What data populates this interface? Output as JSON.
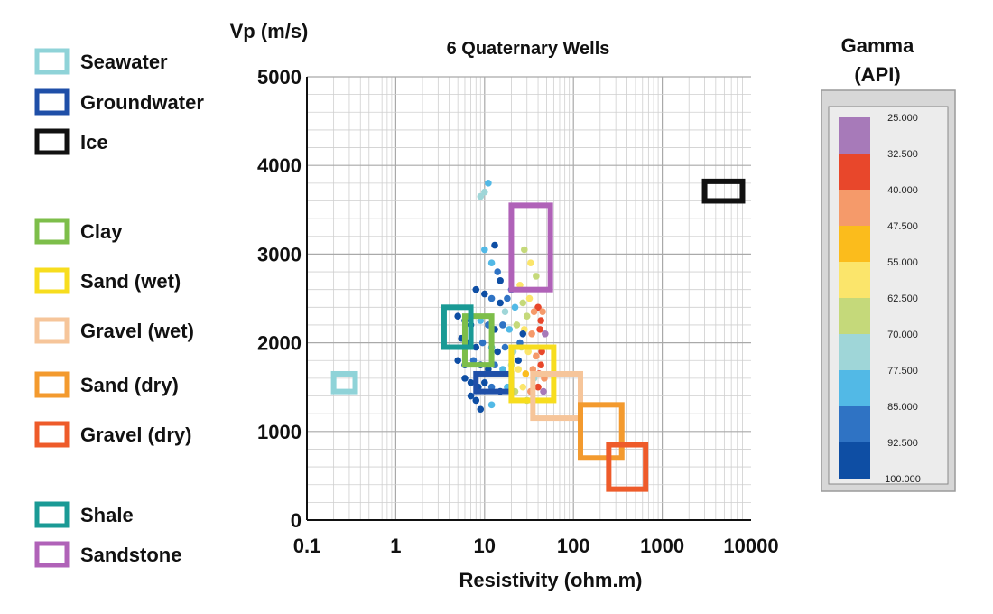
{
  "chart_data": {
    "type": "scatter",
    "title": "6 Quaternary Wells",
    "xlabel": "Resistivity (ohm.m)",
    "ylabel": "Vp (m/s)",
    "xscale": "log",
    "xlim": [
      0.1,
      10000
    ],
    "ylim": [
      0,
      5000
    ],
    "xticks": [
      "0.1",
      "1",
      "10",
      "100",
      "1000",
      "10000"
    ],
    "yticks": [
      "0",
      "1000",
      "2000",
      "3000",
      "4000",
      "5000"
    ],
    "grid": true,
    "legend": [
      {
        "label": "Seawater",
        "color": "#8fd3d8"
      },
      {
        "label": "Groundwater",
        "color": "#1f4fa8"
      },
      {
        "label": "Ice",
        "color": "#111111"
      },
      {
        "label": "Clay",
        "color": "#7dbe4a"
      },
      {
        "label": "Sand (wet)",
        "color": "#f7dd1e"
      },
      {
        "label": "Gravel (wet)",
        "color": "#f6c59a"
      },
      {
        "label": "Sand (dry)",
        "color": "#f39a2e"
      },
      {
        "label": "Gravel (dry)",
        "color": "#ee5b2a"
      },
      {
        "label": "Shale",
        "color": "#1a9a95"
      },
      {
        "label": "Sandstone",
        "color": "#b062b8"
      }
    ],
    "zones": [
      {
        "name": "Seawater",
        "x": [
          0.2,
          0.35
        ],
        "y": [
          1450,
          1650
        ],
        "color": "#8fd3d8"
      },
      {
        "name": "Groundwater",
        "x": [
          8,
          20
        ],
        "y": [
          1450,
          1650
        ],
        "color": "#1f4fa8"
      },
      {
        "name": "Ice",
        "x": [
          3000,
          8000
        ],
        "y": [
          3600,
          3820
        ],
        "color": "#111111"
      },
      {
        "name": "Clay",
        "x": [
          6,
          12
        ],
        "y": [
          1750,
          2300
        ],
        "color": "#7dbe4a"
      },
      {
        "name": "Sand (wet)",
        "x": [
          20,
          60
        ],
        "y": [
          1350,
          1950
        ],
        "color": "#f7dd1e"
      },
      {
        "name": "Gravel (wet)",
        "x": [
          35,
          120
        ],
        "y": [
          1150,
          1650
        ],
        "color": "#f6c59a"
      },
      {
        "name": "Sand (dry)",
        "x": [
          120,
          350
        ],
        "y": [
          700,
          1300
        ],
        "color": "#f39a2e"
      },
      {
        "name": "Gravel (dry)",
        "x": [
          250,
          650
        ],
        "y": [
          350,
          850
        ],
        "color": "#ee5b2a"
      },
      {
        "name": "Shale",
        "x": [
          3.5,
          7
        ],
        "y": [
          1950,
          2400
        ],
        "color": "#1a9a95"
      },
      {
        "name": "Sandstone",
        "x": [
          20,
          55
        ],
        "y": [
          2600,
          3550
        ],
        "color": "#b062b8"
      }
    ],
    "points": [
      {
        "x": 9,
        "y": 3650,
        "gamma": 70
      },
      {
        "x": 10,
        "y": 3700,
        "gamma": 70
      },
      {
        "x": 11,
        "y": 3800,
        "gamma": 77.5
      },
      {
        "x": 10,
        "y": 3050,
        "gamma": 77.5
      },
      {
        "x": 12,
        "y": 2900,
        "gamma": 77.5
      },
      {
        "x": 14,
        "y": 2800,
        "gamma": 85
      },
      {
        "x": 28,
        "y": 3050,
        "gamma": 62.5
      },
      {
        "x": 33,
        "y": 2900,
        "gamma": 55
      },
      {
        "x": 38,
        "y": 2750,
        "gamma": 62.5
      },
      {
        "x": 25,
        "y": 2650,
        "gamma": 55
      },
      {
        "x": 8,
        "y": 2600,
        "gamma": 100
      },
      {
        "x": 10,
        "y": 2550,
        "gamma": 92.5
      },
      {
        "x": 12,
        "y": 2500,
        "gamma": 85
      },
      {
        "x": 15,
        "y": 2450,
        "gamma": 92.5
      },
      {
        "x": 18,
        "y": 2500,
        "gamma": 85
      },
      {
        "x": 22,
        "y": 2400,
        "gamma": 77.5
      },
      {
        "x": 27,
        "y": 2450,
        "gamma": 62.5
      },
      {
        "x": 32,
        "y": 2500,
        "gamma": 55
      },
      {
        "x": 40,
        "y": 2400,
        "gamma": 32.5
      },
      {
        "x": 45,
        "y": 2350,
        "gamma": 40
      },
      {
        "x": 5,
        "y": 2300,
        "gamma": 100
      },
      {
        "x": 6,
        "y": 2250,
        "gamma": 92.5
      },
      {
        "x": 7,
        "y": 2200,
        "gamma": 100
      },
      {
        "x": 9,
        "y": 2250,
        "gamma": 77.5
      },
      {
        "x": 11,
        "y": 2200,
        "gamma": 85
      },
      {
        "x": 13,
        "y": 2150,
        "gamma": 92.5
      },
      {
        "x": 16,
        "y": 2200,
        "gamma": 85
      },
      {
        "x": 19,
        "y": 2150,
        "gamma": 77.5
      },
      {
        "x": 23,
        "y": 2200,
        "gamma": 62.5
      },
      {
        "x": 28,
        "y": 2150,
        "gamma": 55
      },
      {
        "x": 34,
        "y": 2100,
        "gamma": 40
      },
      {
        "x": 42,
        "y": 2150,
        "gamma": 32.5
      },
      {
        "x": 48,
        "y": 2100,
        "gamma": 25
      },
      {
        "x": 5.5,
        "y": 2050,
        "gamma": 92.5
      },
      {
        "x": 6.5,
        "y": 2000,
        "gamma": 100
      },
      {
        "x": 8,
        "y": 1950,
        "gamma": 92.5
      },
      {
        "x": 9.5,
        "y": 2000,
        "gamma": 85
      },
      {
        "x": 12,
        "y": 1950,
        "gamma": 77.5
      },
      {
        "x": 14,
        "y": 1900,
        "gamma": 92.5
      },
      {
        "x": 17,
        "y": 1950,
        "gamma": 85
      },
      {
        "x": 21,
        "y": 1900,
        "gamma": 70
      },
      {
        "x": 26,
        "y": 1950,
        "gamma": 62.5
      },
      {
        "x": 31,
        "y": 1900,
        "gamma": 55
      },
      {
        "x": 38,
        "y": 1850,
        "gamma": 40
      },
      {
        "x": 44,
        "y": 1900,
        "gamma": 32.5
      },
      {
        "x": 5,
        "y": 1800,
        "gamma": 100
      },
      {
        "x": 6,
        "y": 1750,
        "gamma": 92.5
      },
      {
        "x": 7.5,
        "y": 1800,
        "gamma": 85
      },
      {
        "x": 9,
        "y": 1750,
        "gamma": 100
      },
      {
        "x": 11,
        "y": 1700,
        "gamma": 92.5
      },
      {
        "x": 13,
        "y": 1750,
        "gamma": 85
      },
      {
        "x": 16,
        "y": 1700,
        "gamma": 77.5
      },
      {
        "x": 20,
        "y": 1750,
        "gamma": 70
      },
      {
        "x": 24,
        "y": 1700,
        "gamma": 55
      },
      {
        "x": 29,
        "y": 1650,
        "gamma": 47.5
      },
      {
        "x": 35,
        "y": 1700,
        "gamma": 40
      },
      {
        "x": 41,
        "y": 1650,
        "gamma": 32.5
      },
      {
        "x": 6,
        "y": 1600,
        "gamma": 100
      },
      {
        "x": 7,
        "y": 1550,
        "gamma": 92.5
      },
      {
        "x": 8.5,
        "y": 1500,
        "gamma": 100
      },
      {
        "x": 10,
        "y": 1550,
        "gamma": 92.5
      },
      {
        "x": 12,
        "y": 1500,
        "gamma": 85
      },
      {
        "x": 15,
        "y": 1450,
        "gamma": 92.5
      },
      {
        "x": 18,
        "y": 1500,
        "gamma": 77.5
      },
      {
        "x": 22,
        "y": 1450,
        "gamma": 62.5
      },
      {
        "x": 27,
        "y": 1500,
        "gamma": 55
      },
      {
        "x": 33,
        "y": 1450,
        "gamma": 40
      },
      {
        "x": 40,
        "y": 1500,
        "gamma": 32.5
      },
      {
        "x": 46,
        "y": 1450,
        "gamma": 25
      },
      {
        "x": 7,
        "y": 1400,
        "gamma": 100
      },
      {
        "x": 8,
        "y": 1350,
        "gamma": 92.5
      },
      {
        "x": 9,
        "y": 1250,
        "gamma": 100
      },
      {
        "x": 12,
        "y": 1300,
        "gamma": 77.5
      },
      {
        "x": 30,
        "y": 1350,
        "gamma": 62.5
      },
      {
        "x": 36,
        "y": 1600,
        "gamma": 70
      },
      {
        "x": 43,
        "y": 1750,
        "gamma": 32.5
      },
      {
        "x": 47,
        "y": 1600,
        "gamma": 40
      },
      {
        "x": 25,
        "y": 2000,
        "gamma": 85
      },
      {
        "x": 30,
        "y": 2300,
        "gamma": 62.5
      },
      {
        "x": 36,
        "y": 2350,
        "gamma": 40
      },
      {
        "x": 43,
        "y": 2250,
        "gamma": 32.5
      },
      {
        "x": 20,
        "y": 2600,
        "gamma": 85
      },
      {
        "x": 15,
        "y": 2700,
        "gamma": 92.5
      },
      {
        "x": 13,
        "y": 3100,
        "gamma": 92.5
      },
      {
        "x": 27,
        "y": 2100,
        "gamma": 100
      },
      {
        "x": 24,
        "y": 1800,
        "gamma": 92.5
      },
      {
        "x": 17,
        "y": 2350,
        "gamma": 70
      }
    ],
    "colorbar": {
      "title_line1": "Gamma",
      "title_line2": "(API)",
      "ticks": [
        "25.000",
        "32.500",
        "40.000",
        "47.500",
        "55.000",
        "62.500",
        "70.000",
        "77.500",
        "85.000",
        "92.500",
        "100.000"
      ],
      "colors": [
        "#a77ab9",
        "#e8472b",
        "#f59a6a",
        "#fbbc1c",
        "#fbe56b",
        "#c5d97a",
        "#9fd6d8",
        "#52b9e6",
        "#2f73c4",
        "#0e4ea4"
      ]
    }
  }
}
